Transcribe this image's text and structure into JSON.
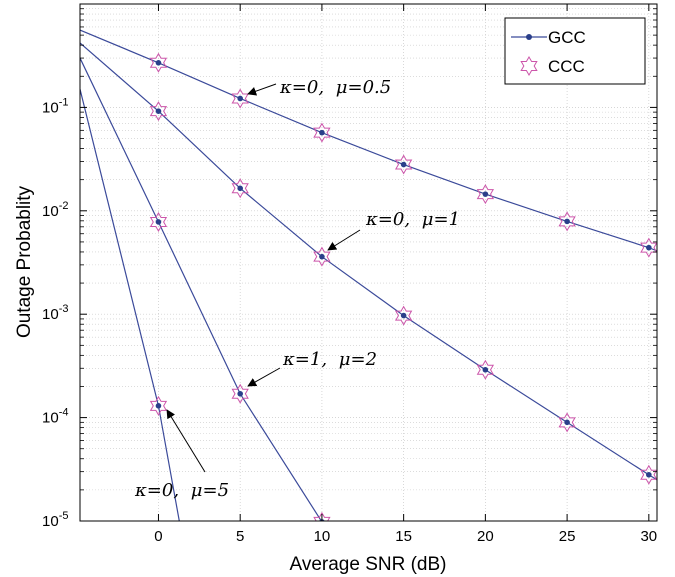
{
  "chart_data": {
    "type": "line",
    "xlabel": "Average SNR (dB)",
    "ylabel": "Outage Probablity",
    "xlim": [
      -4.8,
      30.5
    ],
    "ylim": [
      1e-05,
      1
    ],
    "yscale": "log",
    "grid": true,
    "xticks": [
      0,
      5,
      10,
      15,
      20,
      25,
      30
    ],
    "yticks": [
      {
        "value": 1e-05,
        "mant": "10",
        "exp": "-5"
      },
      {
        "value": 0.0001,
        "mant": "10",
        "exp": "-4"
      },
      {
        "value": 0.001,
        "mant": "10",
        "exp": "-3"
      },
      {
        "value": 0.01,
        "mant": "10",
        "exp": "-2"
      },
      {
        "value": 0.1,
        "mant": "10",
        "exp": "-1"
      }
    ],
    "legend": {
      "placement": "top-right",
      "entries": [
        {
          "name": "GCC",
          "marker": "dot",
          "color": "#3b4a9a"
        },
        {
          "name": "CCC",
          "marker": "hexagram",
          "color": "#cc55aa"
        }
      ]
    },
    "series": [
      {
        "label_kappa": "κ=0,",
        "label_mu": "μ=0.5",
        "line_x": [
          -4.8,
          0,
          5,
          10,
          15,
          20,
          25,
          30,
          30.5
        ],
        "line_y": [
          0.56,
          0.27,
          0.122,
          0.057,
          0.028,
          0.0145,
          0.0079,
          0.0044,
          0.0041
        ],
        "marker_x": [
          0,
          5,
          10,
          15,
          20,
          25,
          30
        ],
        "marker_y": [
          0.27,
          0.122,
          0.057,
          0.028,
          0.0145,
          0.0079,
          0.0044
        ]
      },
      {
        "label_kappa": "κ=0,",
        "label_mu": "μ=1",
        "line_x": [
          -4.8,
          0,
          5,
          10,
          15,
          20,
          25,
          30,
          30.5
        ],
        "line_y": [
          0.42,
          0.092,
          0.0165,
          0.0036,
          0.00097,
          0.00029,
          9e-05,
          2.8e-05,
          2.5e-05
        ],
        "marker_x": [
          0,
          5,
          10,
          15,
          20,
          25,
          30
        ],
        "marker_y": [
          0.092,
          0.0165,
          0.0036,
          0.00097,
          0.00029,
          9e-05,
          2.8e-05
        ]
      },
      {
        "label_kappa": "κ=1,",
        "label_mu": "μ=2",
        "line_x": [
          -4.8,
          0,
          5,
          10
        ],
        "line_y": [
          0.3,
          0.0078,
          0.00017,
          9.8e-06
        ],
        "marker_x": [
          0,
          5,
          10
        ],
        "marker_y": [
          0.0078,
          0.00017,
          9.8e-06
        ]
      },
      {
        "label_kappa": "κ=0,",
        "label_mu": "μ=5",
        "line_x": [
          -4.8,
          0,
          1.3
        ],
        "line_y": [
          0.15,
          0.00013,
          9.5e-06
        ],
        "marker_x": [
          0
        ],
        "marker_y": [
          0.00013
        ]
      }
    ],
    "colors": {
      "line": "#3b4a9a",
      "dot": "#2a3f8a",
      "star": "#cc55aa",
      "grid": "#c8c8c8"
    }
  }
}
